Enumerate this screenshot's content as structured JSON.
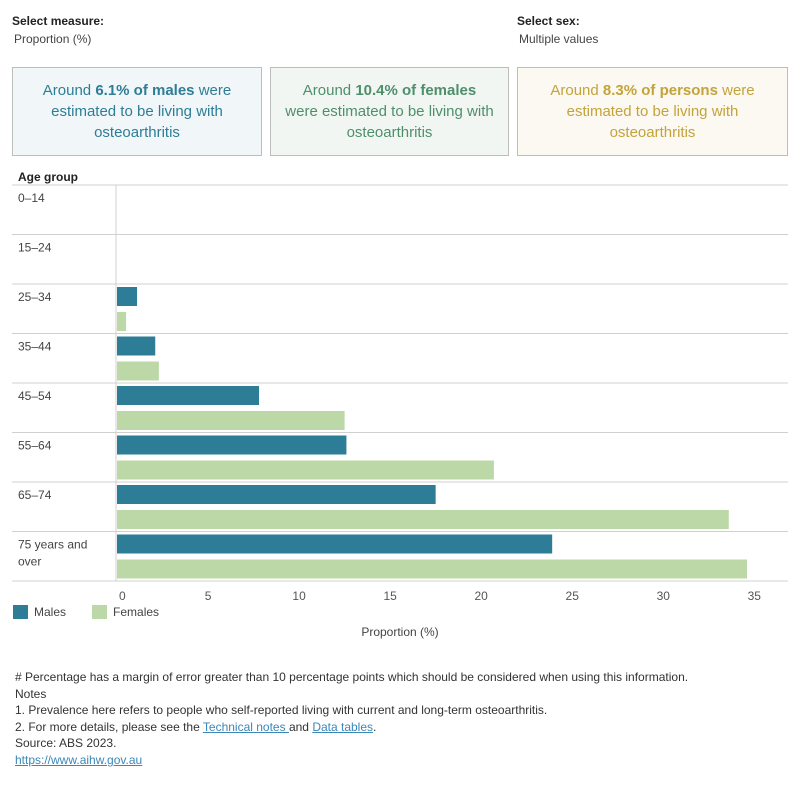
{
  "filters": {
    "measure": {
      "label": "Select measure:",
      "value": "Proportion (%)"
    },
    "sex": {
      "label": "Select sex:",
      "value": "Multiple values"
    }
  },
  "cards": [
    {
      "pre": "Around ",
      "highlight": "6.1% of males",
      "post": " were estimated to be living with osteoarthritis",
      "color": "#2e7d96",
      "bg": "#f1f7f9"
    },
    {
      "pre": "Around ",
      "highlight": "10.4% of females",
      "post": " were estimated to be living with osteoarthritis",
      "color": "#4e8f6a",
      "bg": "#f2f6f3"
    },
    {
      "pre": "Around ",
      "highlight": "8.3% of persons",
      "post": " were estimated to be living with osteoarthritis",
      "color": "#c4a33a",
      "bg": "#fbf9f1"
    }
  ],
  "chart_data": {
    "type": "bar",
    "orientation": "horizontal",
    "title": "",
    "xlabel": "Proportion (%)",
    "ylabel": "Age group",
    "xlim": [
      0,
      35
    ],
    "xticks": [
      0,
      5,
      10,
      15,
      20,
      25,
      30,
      35
    ],
    "categories": [
      "0–14",
      "15–24",
      "25–34",
      "35–44",
      "45–54",
      "55–64",
      "65–74",
      "75 years and over"
    ],
    "series": [
      {
        "name": "Males",
        "color": "#2e7d96",
        "values": [
          0,
          0,
          1.1,
          2.1,
          7.8,
          12.6,
          17.5,
          23.9
        ]
      },
      {
        "name": "Females",
        "color": "#bcd8a7",
        "values": [
          0,
          0,
          0.5,
          2.3,
          12.5,
          20.7,
          33.6,
          34.6
        ]
      }
    ],
    "legend_position": "bottom-left",
    "grid": true
  },
  "notes": {
    "margin_note": "# Percentage has a margin of error greater than 10 percentage points which should be considered when using this information.",
    "heading": "Notes",
    "note1": "1. Prevalence here refers to people who self-reported living with current and long-term osteoarthritis.",
    "note2_pre": "2. For more details, please see the ",
    "note2_link1": "Technical notes ",
    "note2_mid": "and ",
    "note2_link2": "Data tables",
    "note2_post": ".",
    "source": "Source: ABS 2023.",
    "url": "https://www.aihw.gov.au"
  }
}
